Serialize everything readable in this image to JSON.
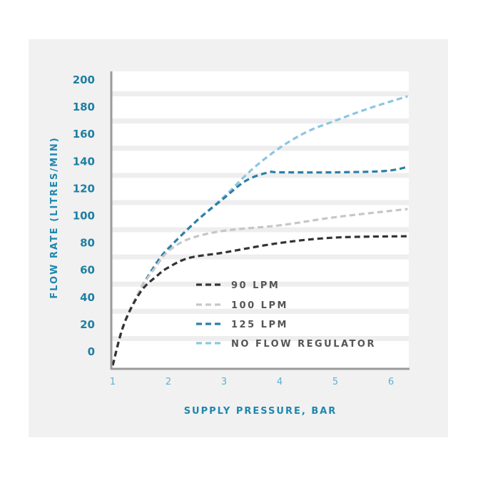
{
  "chart_data": {
    "type": "line",
    "xlabel": "SUPPLY PRESSURE, BAR",
    "ylabel": "FLOW RATE (LITRES/MIN)",
    "xlim": [
      1,
      6.3
    ],
    "ylim": [
      -12,
      205
    ],
    "x_ticks": [
      "1",
      "2",
      "3",
      "4",
      "5",
      "6"
    ],
    "y_ticks": [
      "0",
      "20",
      "40",
      "60",
      "80",
      "100",
      "120",
      "140",
      "160",
      "180",
      "200"
    ],
    "grid": "horizontal bands",
    "legend_position": "bottom-right inside",
    "series": [
      {
        "name": "90 LPM",
        "color": "#333333",
        "points": [
          [
            1,
            -10
          ],
          [
            1.2,
            20
          ],
          [
            1.5,
            44
          ],
          [
            1.8,
            56
          ],
          [
            2,
            62
          ],
          [
            2.37,
            69
          ],
          [
            3,
            73
          ],
          [
            4,
            80
          ],
          [
            5,
            84
          ],
          [
            6.3,
            85
          ]
        ]
      },
      {
        "name": "100 LPM",
        "color": "#c6c6c6",
        "points": [
          [
            1,
            -10
          ],
          [
            1.2,
            20
          ],
          [
            1.5,
            46
          ],
          [
            1.8,
            64
          ],
          [
            2,
            74
          ],
          [
            2.37,
            83
          ],
          [
            3,
            89
          ],
          [
            4,
            93
          ],
          [
            5,
            99
          ],
          [
            6.3,
            105
          ]
        ]
      },
      {
        "name": "125 LPM",
        "color": "#2b7fa8",
        "points": [
          [
            1,
            -10
          ],
          [
            1.2,
            20
          ],
          [
            1.5,
            46
          ],
          [
            1.8,
            66
          ],
          [
            2,
            76
          ],
          [
            2.5,
            96
          ],
          [
            3,
            113
          ],
          [
            3.4,
            126
          ],
          [
            3.8,
            132
          ],
          [
            4,
            132
          ],
          [
            5,
            132
          ],
          [
            5.9,
            133
          ],
          [
            6.3,
            136
          ]
        ]
      },
      {
        "name": "NO FLOW REGULATOR",
        "color": "#8cc6e0",
        "points": [
          [
            1,
            -10
          ],
          [
            1.2,
            20
          ],
          [
            1.5,
            46
          ],
          [
            1.8,
            66
          ],
          [
            2,
            76
          ],
          [
            2.5,
            96
          ],
          [
            3,
            114
          ],
          [
            3.5,
            134
          ],
          [
            4,
            150
          ],
          [
            4.5,
            162
          ],
          [
            5,
            170
          ],
          [
            5.6,
            179
          ],
          [
            6.3,
            188
          ]
        ]
      }
    ]
  }
}
